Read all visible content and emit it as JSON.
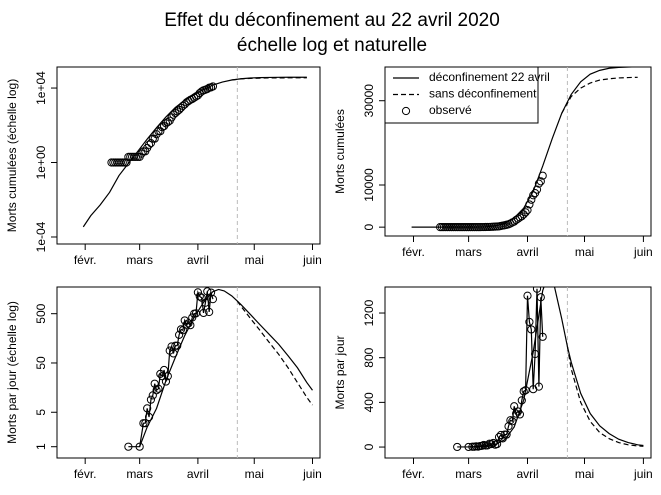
{
  "title": "Effet du déconfinement au 22 avril 2020",
  "subtitle": "échelle log et naturelle",
  "chart_data": [
    {
      "type": "line",
      "log_y": true,
      "y_label": "Morts cumulées (échelle log)",
      "xlim": [
        17,
        157
      ],
      "xticks": [
        {
          "value": 32,
          "label": "févr."
        },
        {
          "value": 61,
          "label": "mars"
        },
        {
          "value": 92,
          "label": "avril"
        },
        {
          "value": 122,
          "label": "mai"
        },
        {
          "value": 153,
          "label": "juin"
        }
      ],
      "ylim": [
        4.2e-05,
        135000
      ],
      "yticks": [
        {
          "value": 0.0001,
          "label": "1e-04"
        },
        {
          "value": 1,
          "label": "1e+00"
        },
        {
          "value": 10000,
          "label": "1e+04"
        }
      ],
      "vline": 113,
      "vline_color": "#bbbbbb",
      "series": [
        {
          "linestyle": "solid",
          "color": "#000000",
          "x": [
            31,
            35,
            40,
            45,
            50,
            55,
            60,
            65,
            70,
            75,
            80,
            85,
            90,
            95,
            100,
            105,
            110,
            115,
            120,
            125,
            130,
            135,
            140,
            145,
            150
          ],
          "values": [
            0.00035,
            0.0014,
            0.0053,
            0.025,
            0.2,
            0.9,
            4,
            18,
            75,
            280,
            900,
            2200,
            4500,
            8500,
            14500,
            21000,
            27000,
            31500,
            34500,
            36300,
            37200,
            37700,
            37900,
            38000,
            38050
          ]
        },
        {
          "linestyle": "dashed",
          "color": "#000000",
          "x": [
            31,
            35,
            40,
            45,
            50,
            55,
            60,
            65,
            70,
            75,
            80,
            85,
            90,
            95,
            100,
            105,
            110,
            115,
            120,
            125,
            130,
            135,
            140,
            145,
            150
          ],
          "values": [
            null,
            null,
            null,
            null,
            null,
            null,
            null,
            null,
            null,
            null,
            null,
            null,
            null,
            null,
            null,
            null,
            27000,
            31000,
            33000,
            34200,
            34900,
            35200,
            35400,
            35500,
            35550
          ]
        },
        {
          "marker": "circle",
          "color": "#000000",
          "x": [
            46,
            47,
            48,
            49,
            50,
            51,
            52,
            53,
            54,
            55,
            56,
            57,
            58,
            59,
            60,
            61,
            62,
            63,
            64,
            65,
            66,
            67,
            68,
            69,
            70,
            71,
            72,
            73,
            74,
            75,
            76,
            77,
            78,
            79,
            80,
            81,
            82,
            83,
            84,
            85,
            86,
            87,
            88,
            89,
            90,
            91,
            92,
            93,
            94,
            95,
            96,
            97,
            98,
            99,
            100
          ],
          "values": [
            1,
            1,
            1,
            1,
            1,
            1,
            1,
            1,
            1,
            2,
            2,
            2,
            2,
            2,
            2,
            2,
            3,
            4,
            4,
            6,
            9,
            11,
            19,
            19,
            33,
            48,
            48,
            79,
            91,
            127,
            148,
            175,
            264,
            372,
            450,
            562,
            674,
            860,
            1100,
            1331,
            1696,
            1995,
            2314,
            2606,
            3024,
            3523,
            4032,
            5387,
            6507,
            7560,
            8078,
            8911,
            10328,
            10869,
            12210
          ]
        }
      ]
    },
    {
      "type": "line",
      "log_y": false,
      "y_label": "Morts cumulées",
      "legend": "topleft",
      "xlim": [
        17,
        157
      ],
      "xticks": [
        {
          "value": 32,
          "label": "févr."
        },
        {
          "value": 61,
          "label": "mars"
        },
        {
          "value": 92,
          "label": "avril"
        },
        {
          "value": 122,
          "label": "mai"
        },
        {
          "value": 153,
          "label": "juin"
        }
      ],
      "ylim": [
        -2100,
        38000
      ],
      "yticks": [
        0,
        10000,
        30000
      ],
      "vline": 113,
      "vline_color": "#bbbbbb",
      "series": [
        {
          "name": "déconfinement 22 avril",
          "linestyle": "solid",
          "color": "#000000",
          "x": [
            31,
            35,
            40,
            45,
            50,
            55,
            60,
            65,
            70,
            75,
            80,
            85,
            90,
            95,
            100,
            105,
            110,
            115,
            120,
            125,
            130,
            135,
            140,
            145,
            150
          ],
          "values": [
            0.00035,
            0.0014,
            0.0053,
            0.025,
            0.2,
            0.9,
            4,
            18,
            75,
            280,
            900,
            2200,
            4500,
            8500,
            14500,
            21000,
            27000,
            31500,
            34500,
            36300,
            37200,
            37700,
            37900,
            38000,
            38050
          ]
        },
        {
          "name": "sans déconfinement",
          "linestyle": "dashed",
          "color": "#000000",
          "x": [
            31,
            35,
            40,
            45,
            50,
            55,
            60,
            65,
            70,
            75,
            80,
            85,
            90,
            95,
            100,
            105,
            110,
            115,
            120,
            125,
            130,
            135,
            140,
            145,
            150
          ],
          "values": [
            null,
            null,
            null,
            null,
            null,
            null,
            null,
            null,
            null,
            null,
            null,
            null,
            null,
            null,
            null,
            null,
            27000,
            31000,
            33000,
            34200,
            34900,
            35200,
            35400,
            35500,
            35550
          ]
        },
        {
          "name": "observé",
          "marker": "circle",
          "color": "#000000",
          "x": [
            46,
            47,
            48,
            49,
            50,
            51,
            52,
            53,
            54,
            55,
            56,
            57,
            58,
            59,
            60,
            61,
            62,
            63,
            64,
            65,
            66,
            67,
            68,
            69,
            70,
            71,
            72,
            73,
            74,
            75,
            76,
            77,
            78,
            79,
            80,
            81,
            82,
            83,
            84,
            85,
            86,
            87,
            88,
            89,
            90,
            91,
            92,
            93,
            94,
            95,
            96,
            97,
            98,
            99,
            100
          ],
          "values": [
            1,
            1,
            1,
            1,
            1,
            1,
            1,
            1,
            1,
            2,
            2,
            2,
            2,
            2,
            2,
            2,
            3,
            4,
            4,
            6,
            9,
            11,
            19,
            19,
            33,
            48,
            48,
            79,
            91,
            127,
            148,
            175,
            264,
            372,
            450,
            562,
            674,
            860,
            1100,
            1331,
            1696,
            1995,
            2314,
            2606,
            3024,
            3523,
            4032,
            5387,
            6507,
            7560,
            8078,
            8911,
            10328,
            10869,
            12210
          ]
        }
      ]
    },
    {
      "type": "line",
      "log_y": true,
      "y_label": "Morts par jour (échelle log)",
      "xlim": [
        17,
        157
      ],
      "xticks": [
        {
          "value": 32,
          "label": "févr."
        },
        {
          "value": 61,
          "label": "mars"
        },
        {
          "value": 92,
          "label": "avril"
        },
        {
          "value": 122,
          "label": "mai"
        },
        {
          "value": 153,
          "label": "juin"
        }
      ],
      "ylim": [
        0.59,
        1740
      ],
      "yticks": [
        1,
        5,
        50,
        500
      ],
      "vline": 113,
      "vline_color": "#bbbbbb",
      "series": [
        {
          "linestyle": "solid",
          "color": "#000000",
          "x": [
            61,
            65,
            70,
            75,
            80,
            85,
            90,
            95,
            100,
            103,
            106,
            110,
            113,
            115,
            120,
            125,
            130,
            135,
            140,
            145,
            150,
            153
          ],
          "values": [
            1,
            2.5,
            6,
            22,
            65,
            180,
            420,
            850,
            1400,
            1550,
            1450,
            1150,
            900,
            760,
            480,
            300,
            190,
            120,
            70,
            40,
            20,
            14
          ]
        },
        {
          "linestyle": "dashed",
          "color": "#000000",
          "x": [
            61,
            65,
            70,
            75,
            80,
            85,
            90,
            95,
            100,
            103,
            106,
            110,
            113,
            115,
            120,
            125,
            130,
            135,
            140,
            145,
            150,
            153
          ],
          "values": [
            null,
            null,
            null,
            null,
            null,
            null,
            null,
            null,
            null,
            null,
            null,
            null,
            900,
            700,
            400,
            230,
            130,
            75,
            40,
            20,
            10,
            7
          ]
        },
        {
          "marker": "circle",
          "lines": true,
          "color": "#000000",
          "x": [
            55,
            61,
            63,
            64,
            65,
            66,
            67,
            68,
            69,
            70,
            71,
            72,
            73,
            74,
            75,
            76,
            77,
            78,
            79,
            80,
            81,
            82,
            83,
            84,
            85,
            86,
            87,
            88,
            89,
            90,
            91,
            92,
            93,
            94,
            95,
            96,
            97,
            98,
            99,
            100
          ],
          "values": [
            1,
            1,
            3,
            3,
            6,
            4,
            9,
            11,
            19,
            14,
            15,
            30,
            27,
            36,
            21,
            27,
            89,
            108,
            78,
            112,
            112,
            186,
            240,
            231,
            365,
            299,
            319,
            292,
            418,
            499,
            509,
            1355,
            1120,
            1053,
            518,
            833,
            1417,
            541,
            1341,
            987
          ]
        }
      ]
    },
    {
      "type": "line",
      "log_y": false,
      "y_label": "Morts par jour",
      "xlim": [
        17,
        157
      ],
      "xticks": [
        {
          "value": 32,
          "label": "févr."
        },
        {
          "value": 61,
          "label": "mars"
        },
        {
          "value": 92,
          "label": "avril"
        },
        {
          "value": 122,
          "label": "mai"
        },
        {
          "value": 153,
          "label": "juin"
        }
      ],
      "ylim": [
        -98,
        1433
      ],
      "yticks": [
        0,
        400,
        800,
        1200
      ],
      "vline": 113,
      "vline_color": "#bbbbbb",
      "series": [
        {
          "linestyle": "solid",
          "color": "#000000",
          "x": [
            61,
            65,
            70,
            75,
            80,
            85,
            90,
            95,
            100,
            103,
            106,
            110,
            113,
            115,
            120,
            125,
            130,
            135,
            140,
            145,
            150,
            153
          ],
          "values": [
            1,
            2.5,
            6,
            22,
            65,
            180,
            420,
            850,
            1400,
            1550,
            1450,
            1150,
            900,
            760,
            480,
            300,
            190,
            120,
            70,
            40,
            20,
            14
          ]
        },
        {
          "linestyle": "dashed",
          "color": "#000000",
          "x": [
            61,
            65,
            70,
            75,
            80,
            85,
            90,
            95,
            100,
            103,
            106,
            110,
            113,
            115,
            120,
            125,
            130,
            135,
            140,
            145,
            150,
            153
          ],
          "values": [
            null,
            null,
            null,
            null,
            null,
            null,
            null,
            null,
            null,
            null,
            null,
            null,
            900,
            700,
            400,
            230,
            130,
            75,
            40,
            20,
            10,
            7
          ]
        },
        {
          "marker": "circle",
          "lines": true,
          "color": "#000000",
          "x": [
            55,
            61,
            63,
            64,
            65,
            66,
            67,
            68,
            69,
            70,
            71,
            72,
            73,
            74,
            75,
            76,
            77,
            78,
            79,
            80,
            81,
            82,
            83,
            84,
            85,
            86,
            87,
            88,
            89,
            90,
            91,
            92,
            93,
            94,
            95,
            96,
            97,
            98,
            99,
            100
          ],
          "values": [
            1,
            1,
            3,
            3,
            6,
            4,
            9,
            11,
            19,
            14,
            15,
            30,
            27,
            36,
            21,
            27,
            89,
            108,
            78,
            112,
            112,
            186,
            240,
            231,
            365,
            299,
            319,
            292,
            418,
            499,
            509,
            1355,
            1120,
            1053,
            518,
            833,
            1417,
            541,
            1341,
            987
          ]
        }
      ]
    }
  ]
}
